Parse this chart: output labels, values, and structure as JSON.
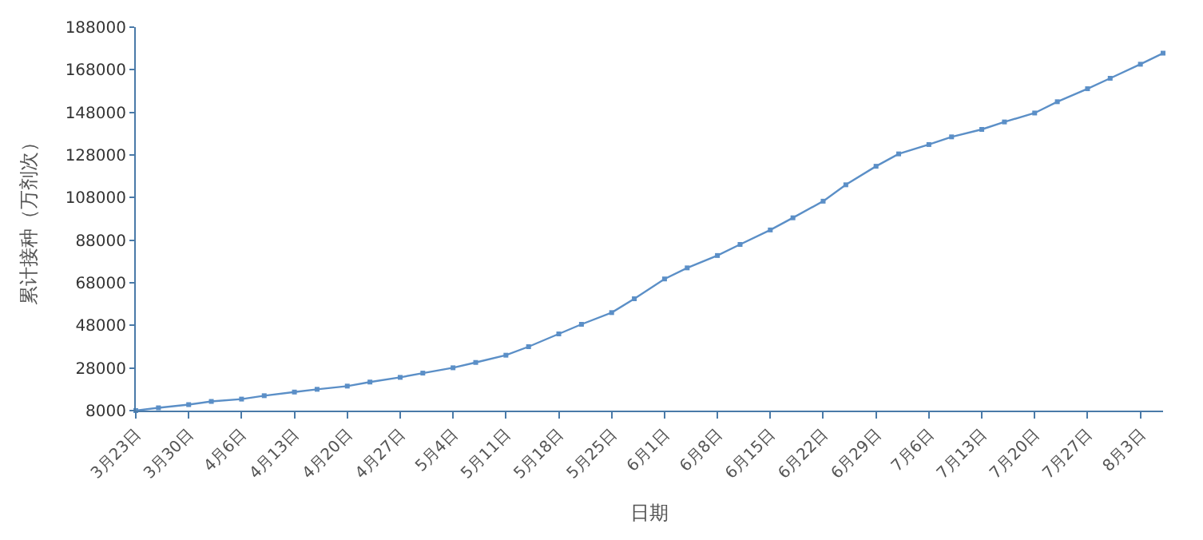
{
  "chart_data": {
    "type": "line",
    "xlabel": "日期",
    "ylabel": "累计接种（万剂次）",
    "x": [
      "--03-23",
      "--03-26",
      "--03-30",
      "--04-02",
      "--04-06",
      "--04-09",
      "--04-13",
      "--04-16",
      "--04-20",
      "--04-23",
      "--04-27",
      "--04-30",
      "--05-04",
      "--05-07",
      "--05-11",
      "--05-14",
      "--05-18",
      "--05-21",
      "--05-25",
      "--05-28",
      "--06-01",
      "--06-04",
      "--06-08",
      "--06-11",
      "--06-15",
      "--06-18",
      "--06-22",
      "--06-25",
      "--06-29",
      "--07-02",
      "--07-06",
      "--07-09",
      "--07-13",
      "--07-16",
      "--07-20",
      "--07-23",
      "--07-27",
      "--07-30",
      "--08-03",
      "--08-06"
    ],
    "series": [
      {
        "color": "#5b8fc7",
        "values": [
          8000,
          9300,
          10800,
          12300,
          13400,
          15000,
          16700,
          18000,
          19500,
          21400,
          23600,
          25600,
          28100,
          30600,
          34000,
          38000,
          44000,
          48500,
          54000,
          60500,
          69800,
          75000,
          80800,
          86000,
          92800,
          98500,
          106300,
          114000,
          122700,
          128500,
          132900,
          136500,
          140000,
          143500,
          147700,
          153000,
          159100,
          164000,
          170600,
          175800
        ]
      }
    ],
    "xlim": [
      "--03-23",
      "--08-06"
    ],
    "xticks": [
      {
        "value": "--03-23",
        "label": "3月23日"
      },
      {
        "value": "--03-30",
        "label": "3月30日"
      },
      {
        "value": "--04-06",
        "label": "4月6日"
      },
      {
        "value": "--04-13",
        "label": "4月13日"
      },
      {
        "value": "--04-20",
        "label": "4月20日"
      },
      {
        "value": "--04-27",
        "label": "4月27日"
      },
      {
        "value": "--05-04",
        "label": "5月4日"
      },
      {
        "value": "--05-11",
        "label": "5月11日"
      },
      {
        "value": "--05-18",
        "label": "5月18日"
      },
      {
        "value": "--05-25",
        "label": "5月25日"
      },
      {
        "value": "--06-01",
        "label": "6月1日"
      },
      {
        "value": "--06-08",
        "label": "6月8日"
      },
      {
        "value": "--06-15",
        "label": "6月15日"
      },
      {
        "value": "--06-22",
        "label": "6月22日"
      },
      {
        "value": "--06-29",
        "label": "6月29日"
      },
      {
        "value": "--07-06",
        "label": "7月6日"
      },
      {
        "value": "--07-13",
        "label": "7月13日"
      },
      {
        "value": "--07-20",
        "label": "7月20日"
      },
      {
        "value": "--07-27",
        "label": "7月27日"
      },
      {
        "value": "--08-03",
        "label": "8月3日"
      }
    ],
    "ylim": [
      8000,
      188000
    ],
    "yticks": [
      8000,
      28000,
      48000,
      68000,
      88000,
      108000,
      128000,
      148000,
      168000,
      188000
    ],
    "marker": "square",
    "line_style": "solid"
  }
}
